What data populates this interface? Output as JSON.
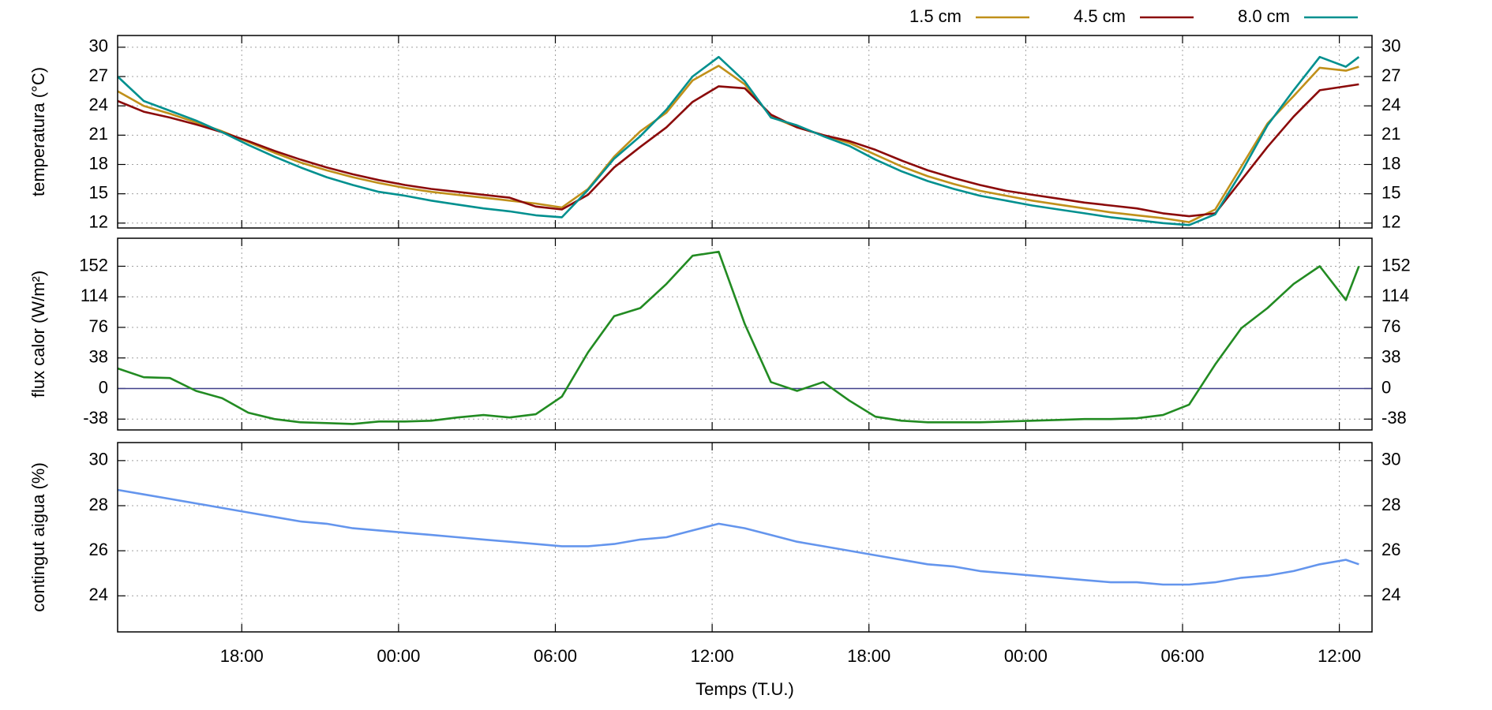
{
  "chart_data": [
    {
      "type": "line",
      "ylabel": "temperatura (°C)",
      "ylim": [
        11.5,
        31.2
      ],
      "yticks": [
        12,
        15,
        18,
        21,
        24,
        27,
        30
      ],
      "xlim": [
        0,
        48
      ],
      "grid": true,
      "legend": "top-right",
      "x": [
        0,
        1,
        2,
        3,
        4,
        5,
        6,
        7,
        8,
        9,
        10,
        11,
        12,
        13,
        14,
        15,
        16,
        17,
        18,
        19,
        20,
        21,
        22,
        23,
        24,
        25,
        26,
        27,
        28,
        29,
        30,
        31,
        32,
        33,
        34,
        35,
        36,
        37,
        38,
        39,
        40,
        41,
        42,
        43,
        44,
        45,
        46,
        47,
        47.5
      ],
      "series": [
        {
          "name": "1.5 cm",
          "color": "#c0901a",
          "values": [
            25.5,
            24.0,
            23.2,
            22.3,
            21.4,
            20.3,
            19.2,
            18.2,
            17.4,
            16.7,
            16.1,
            15.6,
            15.2,
            14.9,
            14.6,
            14.3,
            14.0,
            13.6,
            15.5,
            18.8,
            21.4,
            23.3,
            26.6,
            28.1,
            26.2,
            22.9,
            21.8,
            21.0,
            20.2,
            19.0,
            17.8,
            16.8,
            16.0,
            15.3,
            14.8,
            14.3,
            13.9,
            13.5,
            13.1,
            12.8,
            12.5,
            12.1,
            13.4,
            17.8,
            22.2,
            25.0,
            27.9,
            27.6,
            28.0
          ]
        },
        {
          "name": "4.5 cm",
          "color": "#8b0a0a",
          "values": [
            24.5,
            23.4,
            22.8,
            22.1,
            21.3,
            20.4,
            19.4,
            18.5,
            17.7,
            17.0,
            16.4,
            15.9,
            15.5,
            15.2,
            14.9,
            14.6,
            13.7,
            13.4,
            14.9,
            17.7,
            19.8,
            21.8,
            24.4,
            26.0,
            25.8,
            23.1,
            21.8,
            21.0,
            20.4,
            19.5,
            18.4,
            17.4,
            16.6,
            15.9,
            15.3,
            14.9,
            14.5,
            14.1,
            13.8,
            13.5,
            13.0,
            12.7,
            13.0,
            16.4,
            19.8,
            22.9,
            25.6,
            26.0,
            26.2
          ]
        },
        {
          "name": "8.0 cm",
          "color": "#00908f",
          "values": [
            27.0,
            24.5,
            23.5,
            22.5,
            21.3,
            20.0,
            18.8,
            17.7,
            16.7,
            15.9,
            15.2,
            14.8,
            14.3,
            13.9,
            13.5,
            13.2,
            12.8,
            12.6,
            15.4,
            18.6,
            20.9,
            23.6,
            27.0,
            29.0,
            26.5,
            22.8,
            22.0,
            20.9,
            19.9,
            18.5,
            17.3,
            16.3,
            15.5,
            14.8,
            14.3,
            13.8,
            13.4,
            13.0,
            12.6,
            12.3,
            12.0,
            11.8,
            12.9,
            17.2,
            22.0,
            25.6,
            29.0,
            28.0,
            29.0
          ]
        }
      ]
    },
    {
      "type": "line",
      "ylabel": "flux calor (W/m²)",
      "ylim": [
        -51.5,
        186.8
      ],
      "yticks": [
        -38,
        0,
        38,
        76,
        114,
        152
      ],
      "xlim": [
        0,
        48
      ],
      "grid": true,
      "zero_line": "#40408a",
      "x": [
        0,
        1,
        2,
        3,
        4,
        5,
        6,
        7,
        8,
        9,
        10,
        11,
        12,
        13,
        14,
        15,
        16,
        17,
        18,
        19,
        20,
        21,
        22,
        23,
        24,
        25,
        26,
        27,
        28,
        29,
        30,
        31,
        32,
        33,
        34,
        35,
        36,
        37,
        38,
        39,
        40,
        41,
        42,
        43,
        44,
        45,
        46,
        47,
        47.5
      ],
      "color": "#228b22",
      "values": [
        25,
        14,
        13,
        -3,
        -12,
        -30,
        -38,
        -42,
        -43,
        -44,
        -41,
        -41,
        -40,
        -36,
        -33,
        -36,
        -32,
        -10,
        45,
        90,
        100,
        130,
        165,
        170,
        80,
        8,
        -3,
        8,
        -15,
        -35,
        -40,
        -42,
        -42,
        -42,
        -41,
        -40,
        -39,
        -38,
        -38,
        -37,
        -33,
        -20,
        30,
        75,
        100,
        130,
        152,
        110,
        152
      ]
    },
    {
      "type": "line",
      "ylabel": "contingut aigua (%)",
      "xlabel": "Temps (T.U.)",
      "ylim": [
        22.4,
        30.8
      ],
      "yticks": [
        24,
        26,
        28,
        30
      ],
      "xlim": [
        0,
        48
      ],
      "grid": true,
      "xticks": [
        {
          "value": 4.75,
          "label": "18:00"
        },
        {
          "value": 10.75,
          "label": "00:00"
        },
        {
          "value": 16.75,
          "label": "06:00"
        },
        {
          "value": 22.75,
          "label": "12:00"
        },
        {
          "value": 28.75,
          "label": "18:00"
        },
        {
          "value": 34.75,
          "label": "00:00"
        },
        {
          "value": 40.75,
          "label": "06:00"
        },
        {
          "value": 46.75,
          "label": "12:00"
        }
      ],
      "x": [
        0,
        1,
        2,
        3,
        4,
        5,
        6,
        7,
        8,
        9,
        10,
        11,
        12,
        13,
        14,
        15,
        16,
        17,
        18,
        19,
        20,
        21,
        22,
        23,
        24,
        25,
        26,
        27,
        28,
        29,
        30,
        31,
        32,
        33,
        34,
        35,
        36,
        37,
        38,
        39,
        40,
        41,
        42,
        43,
        44,
        45,
        46,
        47,
        47.5
      ],
      "color": "#6495ed",
      "values": [
        28.7,
        28.5,
        28.3,
        28.1,
        27.9,
        27.7,
        27.5,
        27.3,
        27.2,
        27.0,
        26.9,
        26.8,
        26.7,
        26.6,
        26.5,
        26.4,
        26.3,
        26.2,
        26.2,
        26.3,
        26.5,
        26.6,
        26.9,
        27.2,
        27.0,
        26.7,
        26.4,
        26.2,
        26.0,
        25.8,
        25.6,
        25.4,
        25.3,
        25.1,
        25.0,
        24.9,
        24.8,
        24.7,
        24.6,
        24.6,
        24.5,
        24.5,
        24.6,
        24.8,
        24.9,
        25.1,
        25.4,
        25.6,
        25.4
      ]
    }
  ]
}
